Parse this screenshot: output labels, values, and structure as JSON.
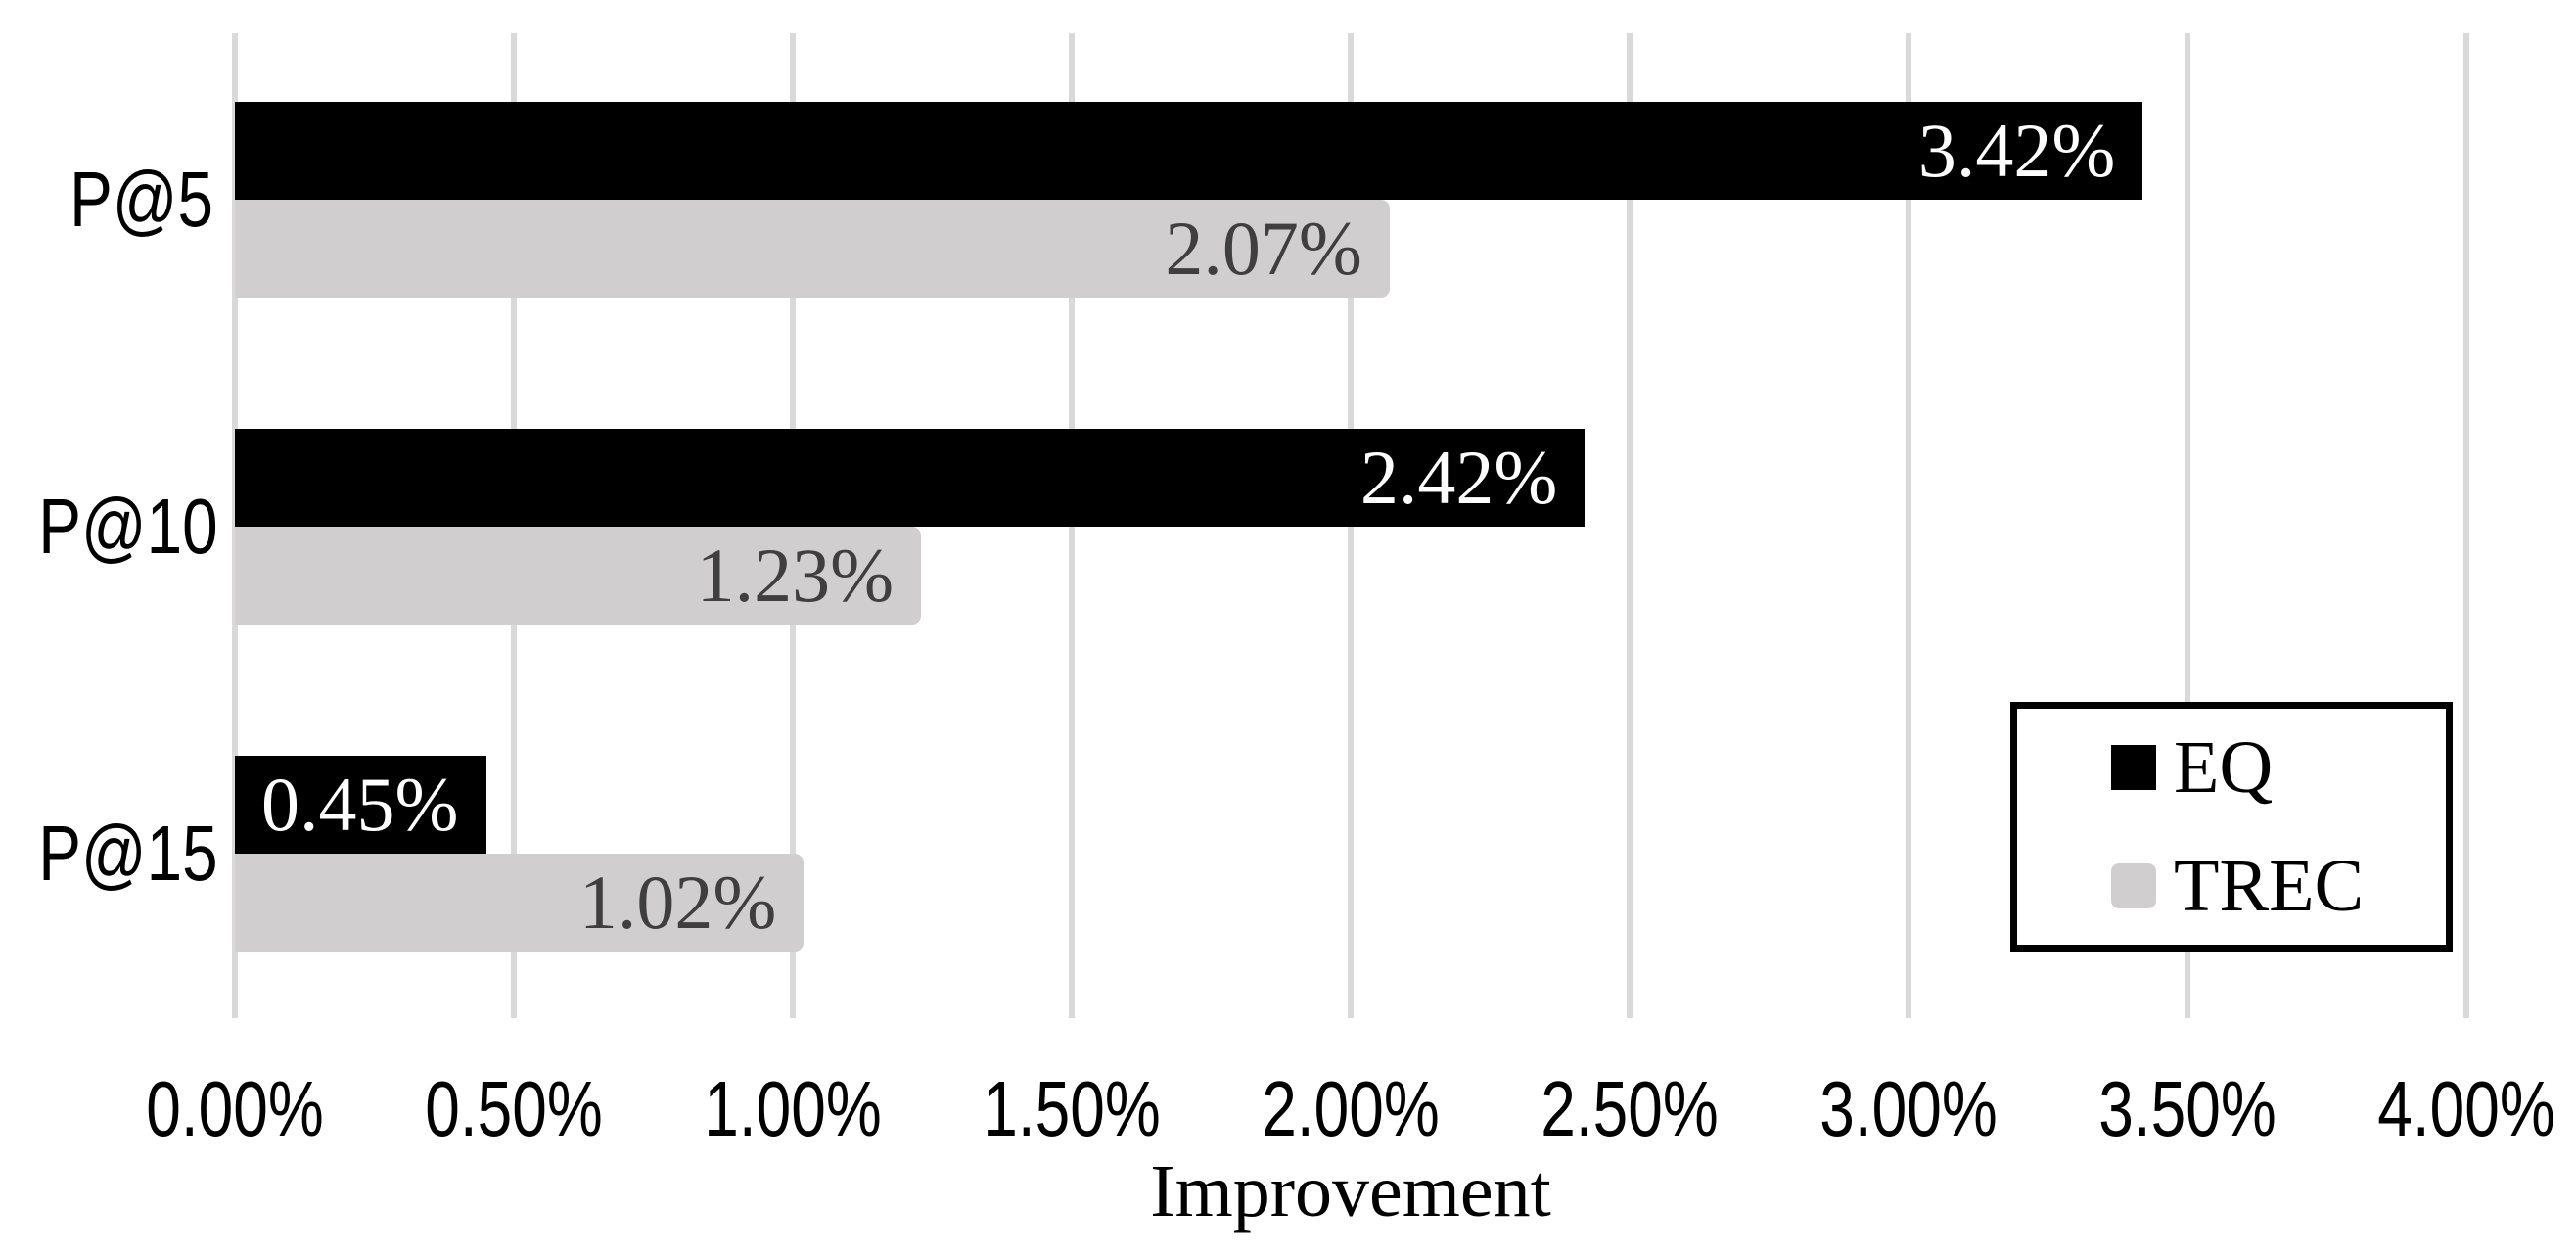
{
  "chart_data": {
    "type": "bar",
    "orientation": "horizontal",
    "title": "",
    "categories": [
      "P@5",
      "P@10",
      "P@15"
    ],
    "series": [
      {
        "name": "EQ",
        "color": "#000000",
        "label_color": "#ffffff",
        "values": [
          3.42,
          2.42,
          0.45
        ],
        "labels": [
          "3.42%",
          "2.42%",
          "0.45%"
        ]
      },
      {
        "name": "TREC",
        "color": "#d0cece",
        "label_color": "#3f3f3f",
        "values": [
          2.07,
          1.23,
          1.02
        ],
        "labels": [
          "2.07%",
          "1.23%",
          "1.02%"
        ]
      }
    ],
    "xlabel": "Improvement",
    "xlim": [
      0,
      4
    ],
    "xticks": [
      0,
      0.5,
      1,
      1.5,
      2,
      2.5,
      3,
      3.5,
      4
    ],
    "xtick_labels": [
      "0.00%",
      "0.50%",
      "1.00%",
      "1.50%",
      "2.00%",
      "2.50%",
      "3.00%",
      "3.50%",
      "4.00%"
    ],
    "grid": "vertical-only",
    "gridline_color": "#d9d9d9",
    "legend_position": "middle-right",
    "background": "#ffffff"
  }
}
